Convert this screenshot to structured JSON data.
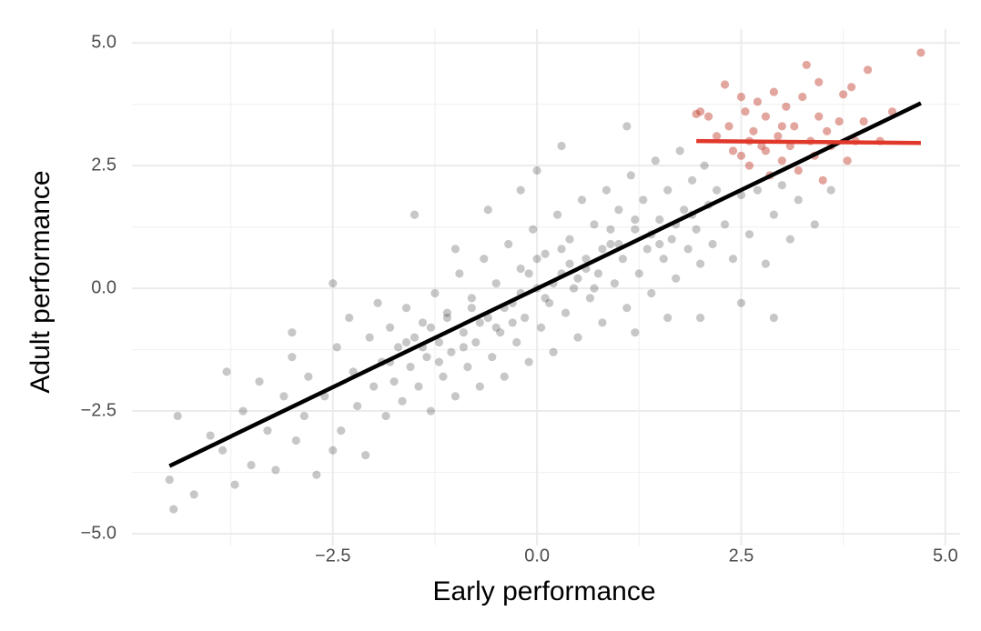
{
  "chart_data": {
    "type": "scatter",
    "x_label": "Early performance",
    "y_label": "Adult performance",
    "xlim": [
      -4.96,
      5.18
    ],
    "ylim": [
      -5.24,
      5.28
    ],
    "xticks": [
      {
        "value": -2.5,
        "label": "−2.5"
      },
      {
        "value": 0,
        "label": "0.0"
      },
      2.5,
      {
        "value": 5,
        "label": "5.0"
      }
    ],
    "yticks": [
      {
        "value": -5,
        "label": "−5.0"
      },
      {
        "value": -2.5,
        "label": "−2.5"
      },
      {
        "value": 0,
        "label": "0.0"
      },
      2.5,
      {
        "value": 5,
        "label": "5.0"
      }
    ],
    "x_minor_ticks": [
      -3.75,
      -1.25,
      1.25,
      3.75
    ],
    "y_minor_ticks": [
      -3.75,
      -1.25,
      1.25,
      3.75
    ],
    "grid": true,
    "series": [
      {
        "color": "#000000",
        "x": [
          -4.5,
          -4.45,
          -4.4,
          -4.2,
          -4.0,
          -3.85,
          -3.8,
          -3.7,
          -3.6,
          -3.5,
          -3.4,
          -3.3,
          -3.2,
          -3.1,
          -3.0,
          -2.95,
          -2.85,
          -2.8,
          -2.7,
          -2.6,
          -2.5,
          -2.45,
          -2.4,
          -2.3,
          -2.25,
          -2.2,
          -2.1,
          -2.05,
          -2.0,
          -1.95,
          -1.9,
          -1.85,
          -1.8,
          -1.75,
          -1.7,
          -1.65,
          -1.6,
          -1.55,
          -1.5,
          -1.45,
          -1.4,
          -1.35,
          -1.3,
          -1.25,
          -1.2,
          -1.15,
          -1.1,
          -1.05,
          -1.0,
          -0.95,
          -0.9,
          -0.85,
          -0.8,
          -0.75,
          -0.7,
          -0.65,
          -0.6,
          -0.55,
          -0.5,
          -0.45,
          -0.4,
          -0.35,
          -0.3,
          -0.25,
          -0.2,
          -0.15,
          -0.1,
          -0.05,
          0.0,
          0.05,
          0.1,
          0.15,
          0.2,
          0.25,
          0.3,
          0.35,
          0.4,
          0.45,
          0.5,
          0.55,
          0.6,
          0.65,
          0.7,
          0.75,
          0.8,
          0.85,
          0.9,
          0.95,
          1.0,
          1.05,
          1.1,
          1.15,
          1.2,
          1.25,
          1.3,
          1.35,
          1.4,
          1.45,
          1.5,
          1.55,
          1.6,
          1.65,
          1.7,
          1.75,
          1.8,
          1.85,
          1.9,
          1.95,
          2.0,
          2.05,
          2.1,
          2.15,
          2.2,
          2.3,
          2.4,
          2.5,
          2.6,
          2.7,
          2.8,
          2.9,
          3.0,
          3.1,
          3.2,
          3.4,
          3.6,
          2.0,
          1.2,
          0.0,
          -0.6,
          0.3,
          1.1,
          -1.5,
          -0.2,
          -1.0,
          1.6,
          2.5,
          2.9,
          -2.5,
          -3.0,
          -1.3,
          -0.9,
          -0.4,
          0.2,
          0.6,
          1.0,
          1.4,
          -1.6,
          -0.7,
          0.4,
          0.8,
          1.2,
          -1.1,
          -0.2,
          0.0,
          0.5,
          -0.5,
          -1.8,
          1.7,
          0.9,
          -0.1,
          -1.2,
          0.7,
          0.3,
          -0.8,
          1.5,
          -1.4,
          1.9,
          -0.3,
          0.1
        ],
        "y": [
          -3.9,
          -4.5,
          -2.6,
          -4.2,
          -3.0,
          -3.3,
          -1.7,
          -4.0,
          -2.5,
          -3.6,
          -1.9,
          -2.9,
          -3.7,
          -2.2,
          -1.4,
          -3.1,
          -2.6,
          -1.8,
          -3.8,
          -2.2,
          0.1,
          -1.2,
          -2.9,
          -0.6,
          -1.7,
          -2.4,
          -3.4,
          -1.0,
          -2.0,
          -0.3,
          -1.5,
          -2.6,
          -0.8,
          -1.9,
          -1.2,
          -2.3,
          -0.4,
          -1.6,
          -1.0,
          -2.0,
          -0.7,
          -1.4,
          -2.5,
          -0.1,
          -1.1,
          -1.8,
          -0.5,
          -1.3,
          -2.2,
          0.3,
          -0.9,
          -1.6,
          -0.2,
          -1.1,
          -2.0,
          0.6,
          -0.6,
          -1.4,
          0.1,
          -0.9,
          -1.8,
          0.9,
          -0.3,
          -1.1,
          0.4,
          -0.6,
          -1.5,
          1.2,
          0.0,
          -0.8,
          0.7,
          -0.3,
          -1.3,
          1.5,
          0.3,
          -0.5,
          1.0,
          0.0,
          -1.0,
          1.8,
          0.6,
          -0.2,
          1.3,
          0.3,
          -0.7,
          2.0,
          0.9,
          0.1,
          1.6,
          0.6,
          -0.4,
          2.3,
          1.2,
          0.3,
          1.8,
          0.8,
          -0.1,
          2.6,
          1.4,
          0.6,
          2.0,
          1.0,
          0.2,
          2.8,
          1.6,
          0.8,
          2.2,
          1.2,
          0.5,
          2.5,
          1.7,
          0.9,
          2.0,
          1.3,
          0.6,
          1.9,
          1.1,
          2.0,
          0.5,
          1.5,
          2.1,
          1.0,
          1.8,
          1.3,
          2.0,
          -0.6,
          -0.9,
          2.4,
          1.6,
          2.9,
          3.3,
          1.5,
          2.0,
          0.8,
          -0.6,
          -0.3,
          -0.6,
          -3.3,
          -0.9,
          -0.8,
          -1.2,
          -0.4,
          0.1,
          0.4,
          0.9,
          1.1,
          -1.1,
          -0.7,
          0.5,
          0.8,
          1.4,
          -0.6,
          -0.1,
          0.6,
          0.2,
          -0.8,
          -1.5,
          1.3,
          1.2,
          0.3,
          -1.5,
          0.0,
          0.8,
          -0.4,
          0.9,
          -1.2,
          1.5,
          -0.7,
          -0.2
        ]
      },
      {
        "color": "#c0392b",
        "x": [
          1.95,
          2.0,
          2.1,
          2.2,
          2.3,
          2.35,
          2.4,
          2.5,
          2.55,
          2.6,
          2.65,
          2.7,
          2.75,
          2.8,
          2.85,
          2.9,
          2.95,
          3.0,
          3.05,
          3.1,
          3.15,
          3.2,
          3.25,
          3.3,
          3.35,
          3.4,
          3.45,
          3.5,
          3.55,
          3.6,
          3.7,
          3.75,
          3.8,
          3.85,
          3.9,
          4.0,
          4.05,
          4.2,
          4.35,
          4.7,
          3.45,
          2.6,
          2.8,
          3.0,
          2.5
        ],
        "y": [
          3.55,
          3.6,
          3.5,
          3.1,
          4.15,
          3.3,
          2.8,
          3.9,
          3.6,
          2.5,
          3.2,
          3.8,
          2.9,
          3.5,
          2.3,
          4.0,
          3.1,
          2.6,
          3.7,
          2.9,
          3.3,
          2.4,
          3.9,
          4.55,
          3.0,
          2.7,
          3.5,
          2.2,
          3.2,
          2.9,
          3.4,
          3.95,
          2.6,
          4.1,
          3.0,
          3.4,
          4.45,
          3.0,
          3.6,
          4.8,
          4.2,
          3.0,
          2.8,
          3.3,
          2.7
        ]
      }
    ],
    "lines": [
      {
        "color": "#000000",
        "x": [
          -4.5,
          4.7
        ],
        "y": [
          -3.62,
          3.77
        ]
      },
      {
        "color": "#e0392b",
        "x": [
          1.95,
          4.7
        ],
        "y": [
          3.0,
          2.96
        ]
      }
    ]
  }
}
